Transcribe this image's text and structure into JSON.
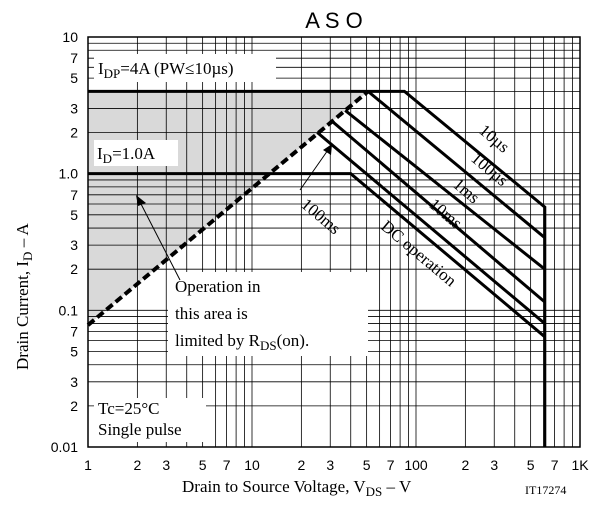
{
  "chart_data": {
    "type": "line",
    "title": "A S O",
    "x_label": [
      "Drain to Source Voltage, V",
      "DS",
      " – V"
    ],
    "y_label": [
      "Drain Current, I",
      "D",
      " – A"
    ],
    "xscale": "log",
    "yscale": "log",
    "grid": true,
    "xlim": [
      1,
      1000
    ],
    "ylim": [
      0.01,
      10
    ],
    "xticks": [
      1,
      2,
      3,
      5,
      7,
      10,
      {
        "value": 20,
        "label": "2"
      },
      {
        "value": 30,
        "label": "3"
      },
      {
        "value": 50,
        "label": "5"
      },
      {
        "value": 70,
        "label": "7"
      },
      100,
      {
        "value": 200,
        "label": "2"
      },
      {
        "value": 300,
        "label": "3"
      },
      {
        "value": 500,
        "label": "5"
      },
      {
        "value": 700,
        "label": "7"
      },
      {
        "value": 1000,
        "label": "1K"
      }
    ],
    "yticks": [
      0.01,
      {
        "value": 0.02,
        "label": "2"
      },
      {
        "value": 0.03,
        "label": "3"
      },
      {
        "value": 0.05,
        "label": "5"
      },
      {
        "value": 0.07,
        "label": "7"
      },
      0.1,
      {
        "value": 0.2,
        "label": "2"
      },
      {
        "value": 0.3,
        "label": "3"
      },
      {
        "value": 0.5,
        "label": "5"
      },
      {
        "value": 0.7,
        "label": "7"
      },
      {
        "value": 1,
        "label": "1.0"
      },
      2,
      3,
      5,
      7,
      10
    ],
    "xminor": [
      4,
      6,
      8,
      9,
      40,
      60,
      80,
      90,
      400,
      600,
      800,
      900
    ],
    "yminor": [
      0.04,
      0.06,
      0.08,
      0.09,
      0.4,
      0.6,
      0.8,
      0.9,
      4,
      6,
      8,
      9
    ],
    "series": [
      {
        "name": "10µs",
        "color": "#000000",
        "x": [
          1,
          85,
          610,
          610
        ],
        "values": [
          4,
          4,
          0.57,
          0.01
        ]
      },
      {
        "name": "100µs",
        "color": "#000000",
        "x": [
          51,
          610
        ],
        "values": [
          4,
          0.34
        ]
      },
      {
        "name": "1ms",
        "color": "#000000",
        "x": [
          37,
          610
        ],
        "values": [
          2.9,
          0.2
        ]
      },
      {
        "name": "10ms",
        "color": "#000000",
        "x": [
          31,
          610
        ],
        "values": [
          2.4,
          0.115
        ]
      },
      {
        "name": "100ms",
        "color": "#000000",
        "x": [
          25,
          610
        ],
        "values": [
          2,
          0.08
        ]
      },
      {
        "name": "DC operation",
        "color": "#000000",
        "x": [
          1,
          40,
          610
        ],
        "values": [
          1,
          1,
          0.064
        ]
      },
      {
        "color": "#000000",
        "dashed": true,
        "shaded": "#d9d9d9",
        "x": [
          1,
          51
        ],
        "values": [
          0.078,
          4
        ]
      }
    ],
    "annotations": {
      "idp": [
        "I",
        "DP",
        "=4A (PW≤10µs)"
      ],
      "id": [
        "I",
        "D",
        "=1.0A"
      ],
      "rds": [
        "Operation in",
        "this area is",
        "limited by R",
        "DS",
        "(on)."
      ],
      "tc": [
        "Tc=25°C",
        "Single pulse"
      ],
      "code": "IT17274"
    }
  }
}
